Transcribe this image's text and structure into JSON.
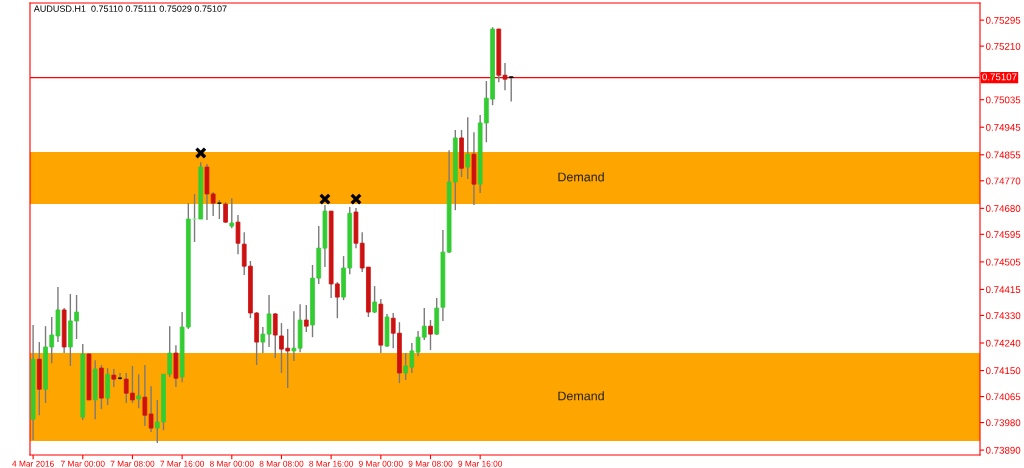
{
  "chart_data": {
    "type": "candlestick",
    "title": "AUDUSD.H1  0.75110 0.75111 0.75029 0.75107",
    "categories": [
      "4 Mar 2016",
      null,
      null,
      null,
      null,
      null,
      null,
      null,
      "7 Mar 00:00",
      null,
      null,
      null,
      null,
      null,
      null,
      null,
      "7 Mar 08:00",
      null,
      null,
      null,
      null,
      null,
      null,
      null,
      "7 Mar 16:00",
      null,
      null,
      null,
      null,
      null,
      null,
      null,
      "8 Mar 00:00",
      null,
      null,
      null,
      null,
      null,
      null,
      null,
      "8 Mar 08:00",
      null,
      null,
      null,
      null,
      null,
      null,
      null,
      "8 Mar 16:00",
      null,
      null,
      null,
      null,
      null,
      null,
      null,
      "9 Mar 00:00",
      null,
      null,
      null,
      null,
      null,
      null,
      null,
      "9 Mar 08:00",
      null,
      null,
      null,
      null,
      null,
      null,
      null,
      "9 Mar 16:00",
      null,
      null,
      null,
      null,
      null,
      null,
      null,
      null,
      null,
      null,
      null,
      null,
      null,
      null,
      null,
      null,
      null,
      null,
      null,
      null,
      null,
      null,
      null,
      null,
      null,
      null,
      null,
      null,
      null,
      null,
      null,
      null,
      null,
      null,
      null,
      null,
      null,
      null,
      null,
      null,
      null,
      null,
      null,
      null,
      null,
      null,
      null,
      null,
      null,
      null,
      null,
      null,
      null,
      null,
      null,
      null,
      null,
      null,
      null,
      null,
      null,
      null,
      null,
      null,
      null,
      null,
      null,
      null,
      null,
      null,
      null,
      null,
      null,
      null,
      null,
      null,
      null,
      null,
      null,
      null
    ],
    "series": [
      {
        "type": "candlestick",
        "ohlc": [
          [
            0.73991,
            0.74299,
            0.73923,
            0.74187
          ],
          [
            0.74187,
            0.74243,
            0.74004,
            0.74089
          ],
          [
            0.74089,
            0.74295,
            0.74044,
            0.74227
          ],
          [
            0.74227,
            0.74325,
            0.74174,
            0.74266
          ],
          [
            0.74263,
            0.74423,
            0.74243,
            0.74348
          ],
          [
            0.74348,
            0.74354,
            0.74207,
            0.74227
          ],
          [
            0.74227,
            0.744,
            0.74165,
            0.74312
          ],
          [
            0.74312,
            0.74397,
            0.74253,
            0.74341
          ],
          [
            0.73998,
            0.74237,
            0.73988,
            0.74204
          ],
          [
            0.74204,
            0.74206,
            0.74054,
            0.74054
          ],
          [
            0.74054,
            0.74184,
            0.73991,
            0.74155
          ],
          [
            0.74158,
            0.74168,
            0.74024,
            0.7406
          ],
          [
            0.7406,
            0.74158,
            0.74037,
            0.74138
          ],
          [
            0.74135,
            0.74155,
            0.74096,
            0.74122
          ],
          [
            0.74125,
            0.74142,
            0.74119,
            0.74125
          ],
          [
            0.74122,
            0.74142,
            0.74044,
            0.74076
          ],
          [
            0.74076,
            0.74165,
            0.74044,
            0.74054
          ],
          [
            0.74057,
            0.74138,
            0.74027,
            0.74067
          ],
          [
            0.74063,
            0.74168,
            0.73969,
            0.74004
          ],
          [
            0.74008,
            0.74099,
            0.73949,
            0.73962
          ],
          [
            0.73962,
            0.74054,
            0.73913,
            0.73982
          ],
          [
            0.73982,
            0.74138,
            0.73955,
            0.74138
          ],
          [
            0.74138,
            0.74295,
            0.74129,
            0.74207
          ],
          [
            0.74207,
            0.74233,
            0.74096,
            0.74125
          ],
          [
            0.74129,
            0.74341,
            0.74112,
            0.74292
          ],
          [
            0.74292,
            0.74697,
            0.74286,
            0.74645
          ],
          [
            0.74645,
            0.74727,
            0.7457,
            0.74645
          ],
          [
            0.74645,
            0.74831,
            0.74645,
            0.74815
          ],
          [
            0.74815,
            0.74825,
            0.74642,
            0.74727
          ],
          [
            0.74727,
            0.74733,
            0.74655,
            0.74697
          ],
          [
            0.74697,
            0.74707,
            0.74645,
            0.74697
          ],
          [
            0.74694,
            0.747,
            0.74632,
            0.74635
          ],
          [
            0.74622,
            0.74713,
            0.74615,
            0.74632
          ],
          [
            0.74635,
            0.74658,
            0.7453,
            0.74566
          ],
          [
            0.74563,
            0.74602,
            0.74462,
            0.74491
          ],
          [
            0.74491,
            0.74508,
            0.74321,
            0.74338
          ],
          [
            0.74338,
            0.74341,
            0.74168,
            0.74243
          ],
          [
            0.74243,
            0.74292,
            0.74207,
            0.74269
          ],
          [
            0.74269,
            0.74397,
            0.74227,
            0.74335
          ],
          [
            0.74335,
            0.74338,
            0.74191,
            0.74266
          ],
          [
            0.74263,
            0.74305,
            0.74142,
            0.7422
          ],
          [
            0.74223,
            0.74286,
            0.74093,
            0.74214
          ],
          [
            0.74214,
            0.74344,
            0.74181,
            0.74223
          ],
          [
            0.74223,
            0.74367,
            0.7421,
            0.74315
          ],
          [
            0.74315,
            0.74364,
            0.74276,
            0.74295
          ],
          [
            0.74299,
            0.74495,
            0.74259,
            0.74452
          ],
          [
            0.74452,
            0.74622,
            0.74433,
            0.7455
          ],
          [
            0.7455,
            0.74691,
            0.74488,
            0.74671
          ],
          [
            0.74671,
            0.74671,
            0.74387,
            0.74433
          ],
          [
            0.74433,
            0.74439,
            0.74321,
            0.7439
          ],
          [
            0.7439,
            0.74524,
            0.7438,
            0.74485
          ],
          [
            0.74485,
            0.74684,
            0.74465,
            0.74664
          ],
          [
            0.74668,
            0.74681,
            0.7455,
            0.74566
          ],
          [
            0.74566,
            0.74602,
            0.74472,
            0.74485
          ],
          [
            0.74488,
            0.74488,
            0.74325,
            0.74341
          ],
          [
            0.74341,
            0.74426,
            0.74338,
            0.74374
          ],
          [
            0.74367,
            0.74384,
            0.74207,
            0.74233
          ],
          [
            0.7423,
            0.74335,
            0.74227,
            0.74325
          ],
          [
            0.74321,
            0.74338,
            0.74223,
            0.74272
          ],
          [
            0.74272,
            0.74308,
            0.74109,
            0.74142
          ],
          [
            0.74142,
            0.74207,
            0.74119,
            0.74165
          ],
          [
            0.74161,
            0.7424,
            0.74142,
            0.74214
          ],
          [
            0.7421,
            0.74279,
            0.74197,
            0.74259
          ],
          [
            0.74259,
            0.74354,
            0.7425,
            0.74295
          ],
          [
            0.74295,
            0.74315,
            0.74217,
            0.74269
          ],
          [
            0.74269,
            0.74387,
            0.74266,
            0.74354
          ],
          [
            0.74357,
            0.74609,
            0.74312,
            0.74537
          ],
          [
            0.74537,
            0.7487,
            0.74534,
            0.74766
          ],
          [
            0.74766,
            0.74936,
            0.74674,
            0.7491
          ],
          [
            0.7491,
            0.74936,
            0.74782,
            0.74811
          ],
          [
            0.74815,
            0.74978,
            0.74776,
            0.74857
          ],
          [
            0.74857,
            0.74929,
            0.74691,
            0.74759
          ],
          [
            0.74759,
            0.74985,
            0.7473,
            0.74959
          ],
          [
            0.74959,
            0.75096,
            0.74896,
            0.7504
          ],
          [
            0.75037,
            0.75272,
            0.75017,
            0.75266
          ],
          [
            0.75266,
            0.75266,
            0.75092,
            0.75115
          ],
          [
            0.75115,
            0.75155,
            0.75066,
            0.75102
          ],
          [
            0.7511,
            0.75111,
            0.75029,
            0.75107
          ],
          null,
          null,
          null,
          null,
          null,
          null,
          null,
          null,
          null,
          null,
          null,
          null,
          null,
          null,
          null,
          null,
          null,
          null,
          null,
          null,
          null,
          null,
          null,
          null,
          null,
          null,
          null,
          null,
          null,
          null,
          null,
          null,
          null,
          null,
          null,
          null,
          null,
          null,
          null,
          null,
          null,
          null,
          null,
          null,
          null,
          null,
          null,
          null,
          null,
          null,
          null,
          null,
          null,
          null,
          null,
          null,
          null,
          null,
          null,
          null,
          null,
          null,
          null,
          null,
          null,
          null,
          null,
          null,
          null,
          null,
          null,
          null,
          null,
          null,
          null
        ],
        "colors": [
          "#33cc33",
          "#cc1111",
          "#33cc33",
          "#33cc33",
          "#33cc33",
          "#cc1111",
          "#33cc33",
          "#33cc33",
          "#33cc33",
          "#cc1111",
          "#33cc33",
          "#cc1111",
          "#33cc33",
          "#cc1111",
          "#000000",
          "#cc1111",
          "#cc1111",
          "#33cc33",
          "#cc1111",
          "#cc1111",
          "#33cc33",
          "#33cc33",
          "#33cc33",
          "#cc1111",
          "#33cc33",
          "#33cc33",
          "#90ee90",
          "#33cc33",
          "#cc1111",
          "#cc1111",
          "#000000",
          "#cc1111",
          "#33cc33",
          "#cc1111",
          "#cc1111",
          "#cc1111",
          "#cc1111",
          "#33cc33",
          "#33cc33",
          "#cc1111",
          "#cc1111",
          "#cc1111",
          "#33cc33",
          "#33cc33",
          "#cc1111",
          "#33cc33",
          "#33cc33",
          "#33cc33",
          "#cc1111",
          "#cc1111",
          "#33cc33",
          "#33cc33",
          "#cc1111",
          "#cc1111",
          "#cc1111",
          "#33cc33",
          "#cc1111",
          "#33cc33",
          "#cc1111",
          "#cc1111",
          "#33cc33",
          "#33cc33",
          "#33cc33",
          "#33cc33",
          "#cc1111",
          "#33cc33",
          "#33cc33",
          "#33cc33",
          "#33cc33",
          "#cc1111",
          "#33cc33",
          "#cc1111",
          "#33cc33",
          "#33cc33",
          "#33cc33",
          "#cc1111",
          "#cc1111",
          "#000000",
          null,
          null,
          null,
          null,
          null,
          null,
          null,
          null,
          null,
          null,
          null,
          null,
          null,
          null,
          null,
          null,
          null,
          null,
          null,
          null,
          null,
          null,
          null,
          null,
          null,
          null,
          null,
          null,
          null,
          null,
          null,
          null,
          null,
          null,
          null,
          null,
          null,
          null,
          null,
          null,
          null,
          null,
          null,
          null,
          null,
          null,
          null,
          null,
          null,
          null,
          null,
          null,
          null,
          null,
          null,
          null,
          null,
          null,
          null,
          null,
          null,
          null,
          null,
          null,
          null,
          null,
          null,
          null,
          null,
          null,
          null,
          null,
          null,
          null,
          null
        ]
      },
      {
        "type": "scatter",
        "marker": "cross",
        "color": "#000000",
        "values": [
          null,
          null,
          null,
          null,
          null,
          null,
          null,
          null,
          null,
          null,
          null,
          null,
          null,
          null,
          null,
          null,
          null,
          null,
          null,
          null,
          null,
          null,
          null,
          null,
          null,
          null,
          null,
          0.74861,
          null,
          null,
          null,
          null,
          null,
          null,
          null,
          null,
          null,
          null,
          null,
          null,
          null,
          null,
          null,
          null,
          null,
          null,
          null,
          0.7471,
          null,
          null,
          null,
          null,
          0.7471,
          null,
          null,
          null,
          null,
          null,
          null,
          null,
          null,
          null,
          null,
          null,
          null,
          null,
          null,
          null,
          null,
          null,
          null,
          null,
          null,
          null,
          null,
          null,
          null,
          null,
          null,
          null,
          null,
          null,
          null,
          null,
          null,
          null,
          null,
          null,
          null,
          null,
          null,
          null,
          null,
          null,
          null,
          null,
          null,
          null,
          null,
          null,
          null,
          null,
          null,
          null,
          null,
          null,
          null,
          null,
          null,
          null,
          null,
          null,
          null,
          null,
          null,
          null,
          null,
          null,
          null,
          null,
          null,
          null,
          null,
          null,
          null,
          null,
          null,
          null,
          null,
          null,
          null,
          null,
          null,
          null,
          null,
          null,
          null,
          null,
          null,
          null,
          null,
          null,
          null,
          null,
          null,
          null,
          null,
          null,
          null,
          null,
          null,
          null,
          null
        ]
      }
    ],
    "ylim": [
      0.73874,
      0.75351
    ],
    "yticks": [
      0.75295,
      {
        "value": 0.7521,
        "label": "0.75210"
      },
      {
        "value": 0.7512,
        "label": null
      },
      0.75035,
      0.74945,
      0.74855,
      {
        "value": 0.7477,
        "label": "0.74770"
      },
      {
        "value": 0.7468,
        "label": "0.74680"
      },
      0.74595,
      0.74505,
      0.74415,
      {
        "value": 0.7433,
        "label": "0.74330"
      },
      {
        "value": 0.7424,
        "label": "0.74240"
      },
      {
        "value": 0.7415,
        "label": "0.74150"
      },
      0.74065,
      {
        "value": 0.7398,
        "label": "0.73980"
      },
      {
        "value": 0.7389,
        "label": "0.73890"
      }
    ],
    "ref_lines": [
      {
        "axis": "y",
        "value": 0.75107,
        "label": "0.75107",
        "color": "#ff0000"
      }
    ],
    "bands": [
      {
        "axis": "y",
        "from": 0.7392,
        "to": 0.74207,
        "label": "Demand",
        "color": "#ffa500"
      },
      {
        "axis": "y",
        "from": 0.74694,
        "to": 0.74864,
        "label": "Demand",
        "color": "#ffa500"
      }
    ]
  }
}
